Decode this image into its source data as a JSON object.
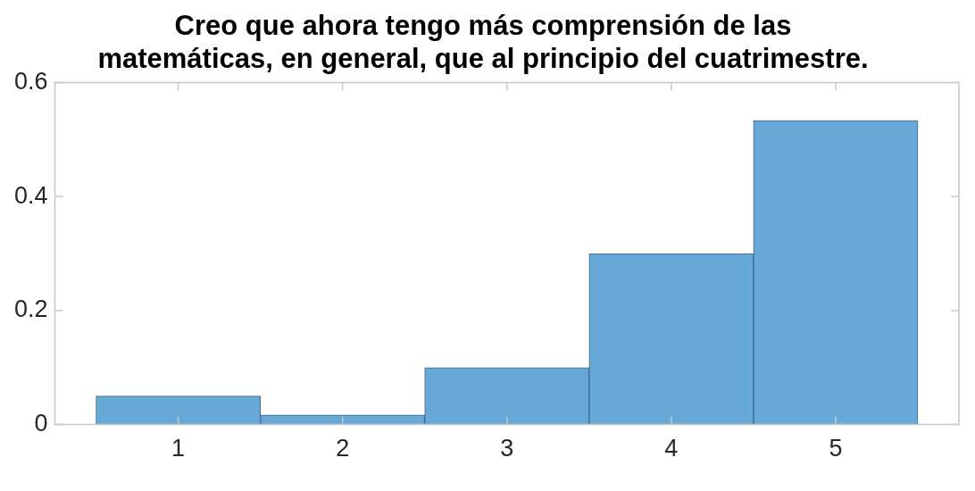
{
  "chart_data": {
    "type": "histogram",
    "title": "Creo que ahora tengo más comprensión de las\nmatemáticas, en general, que al principio del cuatrimestre.",
    "bins": [
      0.5,
      1.5,
      2.5,
      3.5,
      4.5,
      5.5
    ],
    "values": [
      0.05,
      0.017,
      0.1,
      0.3,
      0.533
    ],
    "color": "#66a9d6",
    "xlim": [
      0.25,
      5.75
    ],
    "xticks": [
      1,
      2,
      3,
      4,
      5
    ],
    "ylim": [
      0,
      0.6
    ],
    "yticks": [
      0,
      0.2,
      0.4,
      0.6
    ],
    "grid": false,
    "legend": false
  }
}
